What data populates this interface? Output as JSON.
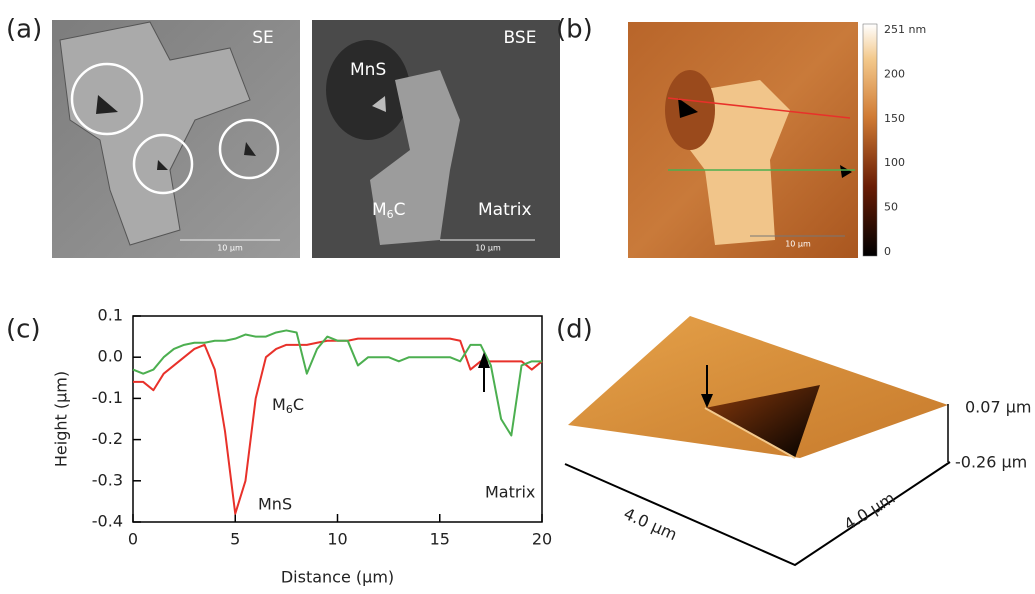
{
  "panels": {
    "a": {
      "label": "(a)",
      "se": "SE",
      "bse": "BSE",
      "mns": "MnS",
      "m6c": [
        "M",
        "6",
        "C"
      ],
      "matrix": "Matrix",
      "scale_se": "10 µm",
      "scale_bse": "10 µm"
    },
    "b": {
      "label": "(b)",
      "scale": "10 µm",
      "colorbar": [
        "251 nm",
        "200",
        "150",
        "100",
        "50",
        "0"
      ]
    },
    "c": {
      "label": "(c)"
    },
    "d": {
      "label": "(d)",
      "z_top": "0.07 µm",
      "z_bottom": "-0.26 µm",
      "x_len": "4.0 µm",
      "y_len": "4.0 µm"
    }
  },
  "chart_data": {
    "type": "line",
    "xlabel": "Distance (µm)",
    "ylabel": "Height (µm)",
    "annotations": [
      "MnS",
      [
        "M",
        "6",
        "C"
      ],
      "Matrix"
    ],
    "x": [
      0,
      0.5,
      1,
      1.5,
      2,
      2.5,
      3,
      3.5,
      4,
      4.5,
      5,
      5.5,
      6,
      6.5,
      7,
      7.5,
      8,
      8.5,
      9,
      9.5,
      10,
      10.5,
      11,
      11.5,
      12,
      12.5,
      13,
      13.5,
      14,
      14.5,
      15,
      15.5,
      16,
      16.5,
      17,
      17.5,
      18,
      18.5,
      19,
      19.5,
      20
    ],
    "series": [
      {
        "color": "#e8312a",
        "values": [
          -0.06,
          -0.06,
          -0.08,
          -0.04,
          -0.02,
          0.0,
          0.02,
          0.03,
          -0.03,
          -0.18,
          -0.38,
          -0.3,
          -0.1,
          0.0,
          0.02,
          0.03,
          0.03,
          0.03,
          0.035,
          0.04,
          0.04,
          0.04,
          0.045,
          0.045,
          0.045,
          0.045,
          0.045,
          0.045,
          0.045,
          0.045,
          0.045,
          0.045,
          0.04,
          -0.03,
          -0.01,
          -0.01,
          -0.01,
          -0.01,
          -0.01,
          -0.03,
          -0.01
        ]
      },
      {
        "color": "#4caf50",
        "values": [
          -0.03,
          -0.04,
          -0.03,
          0.0,
          0.02,
          0.03,
          0.035,
          0.035,
          0.04,
          0.04,
          0.045,
          0.055,
          0.05,
          0.05,
          0.06,
          0.065,
          0.06,
          -0.04,
          0.02,
          0.05,
          0.04,
          0.04,
          -0.02,
          0.0,
          0.0,
          0.0,
          -0.01,
          0.0,
          0.0,
          0.0,
          0.0,
          0.0,
          -0.01,
          0.03,
          0.03,
          -0.02,
          -0.15,
          -0.19,
          -0.02,
          -0.01,
          -0.01
        ]
      }
    ],
    "xlim": [
      0,
      20
    ],
    "xticks": [
      0,
      5,
      10,
      15,
      20
    ],
    "ylim": [
      -0.4,
      0.1
    ],
    "yticks": [
      0.1,
      {
        "value": 0,
        "label": "0.0"
      },
      -0.1,
      -0.2,
      -0.3,
      -0.4
    ]
  }
}
